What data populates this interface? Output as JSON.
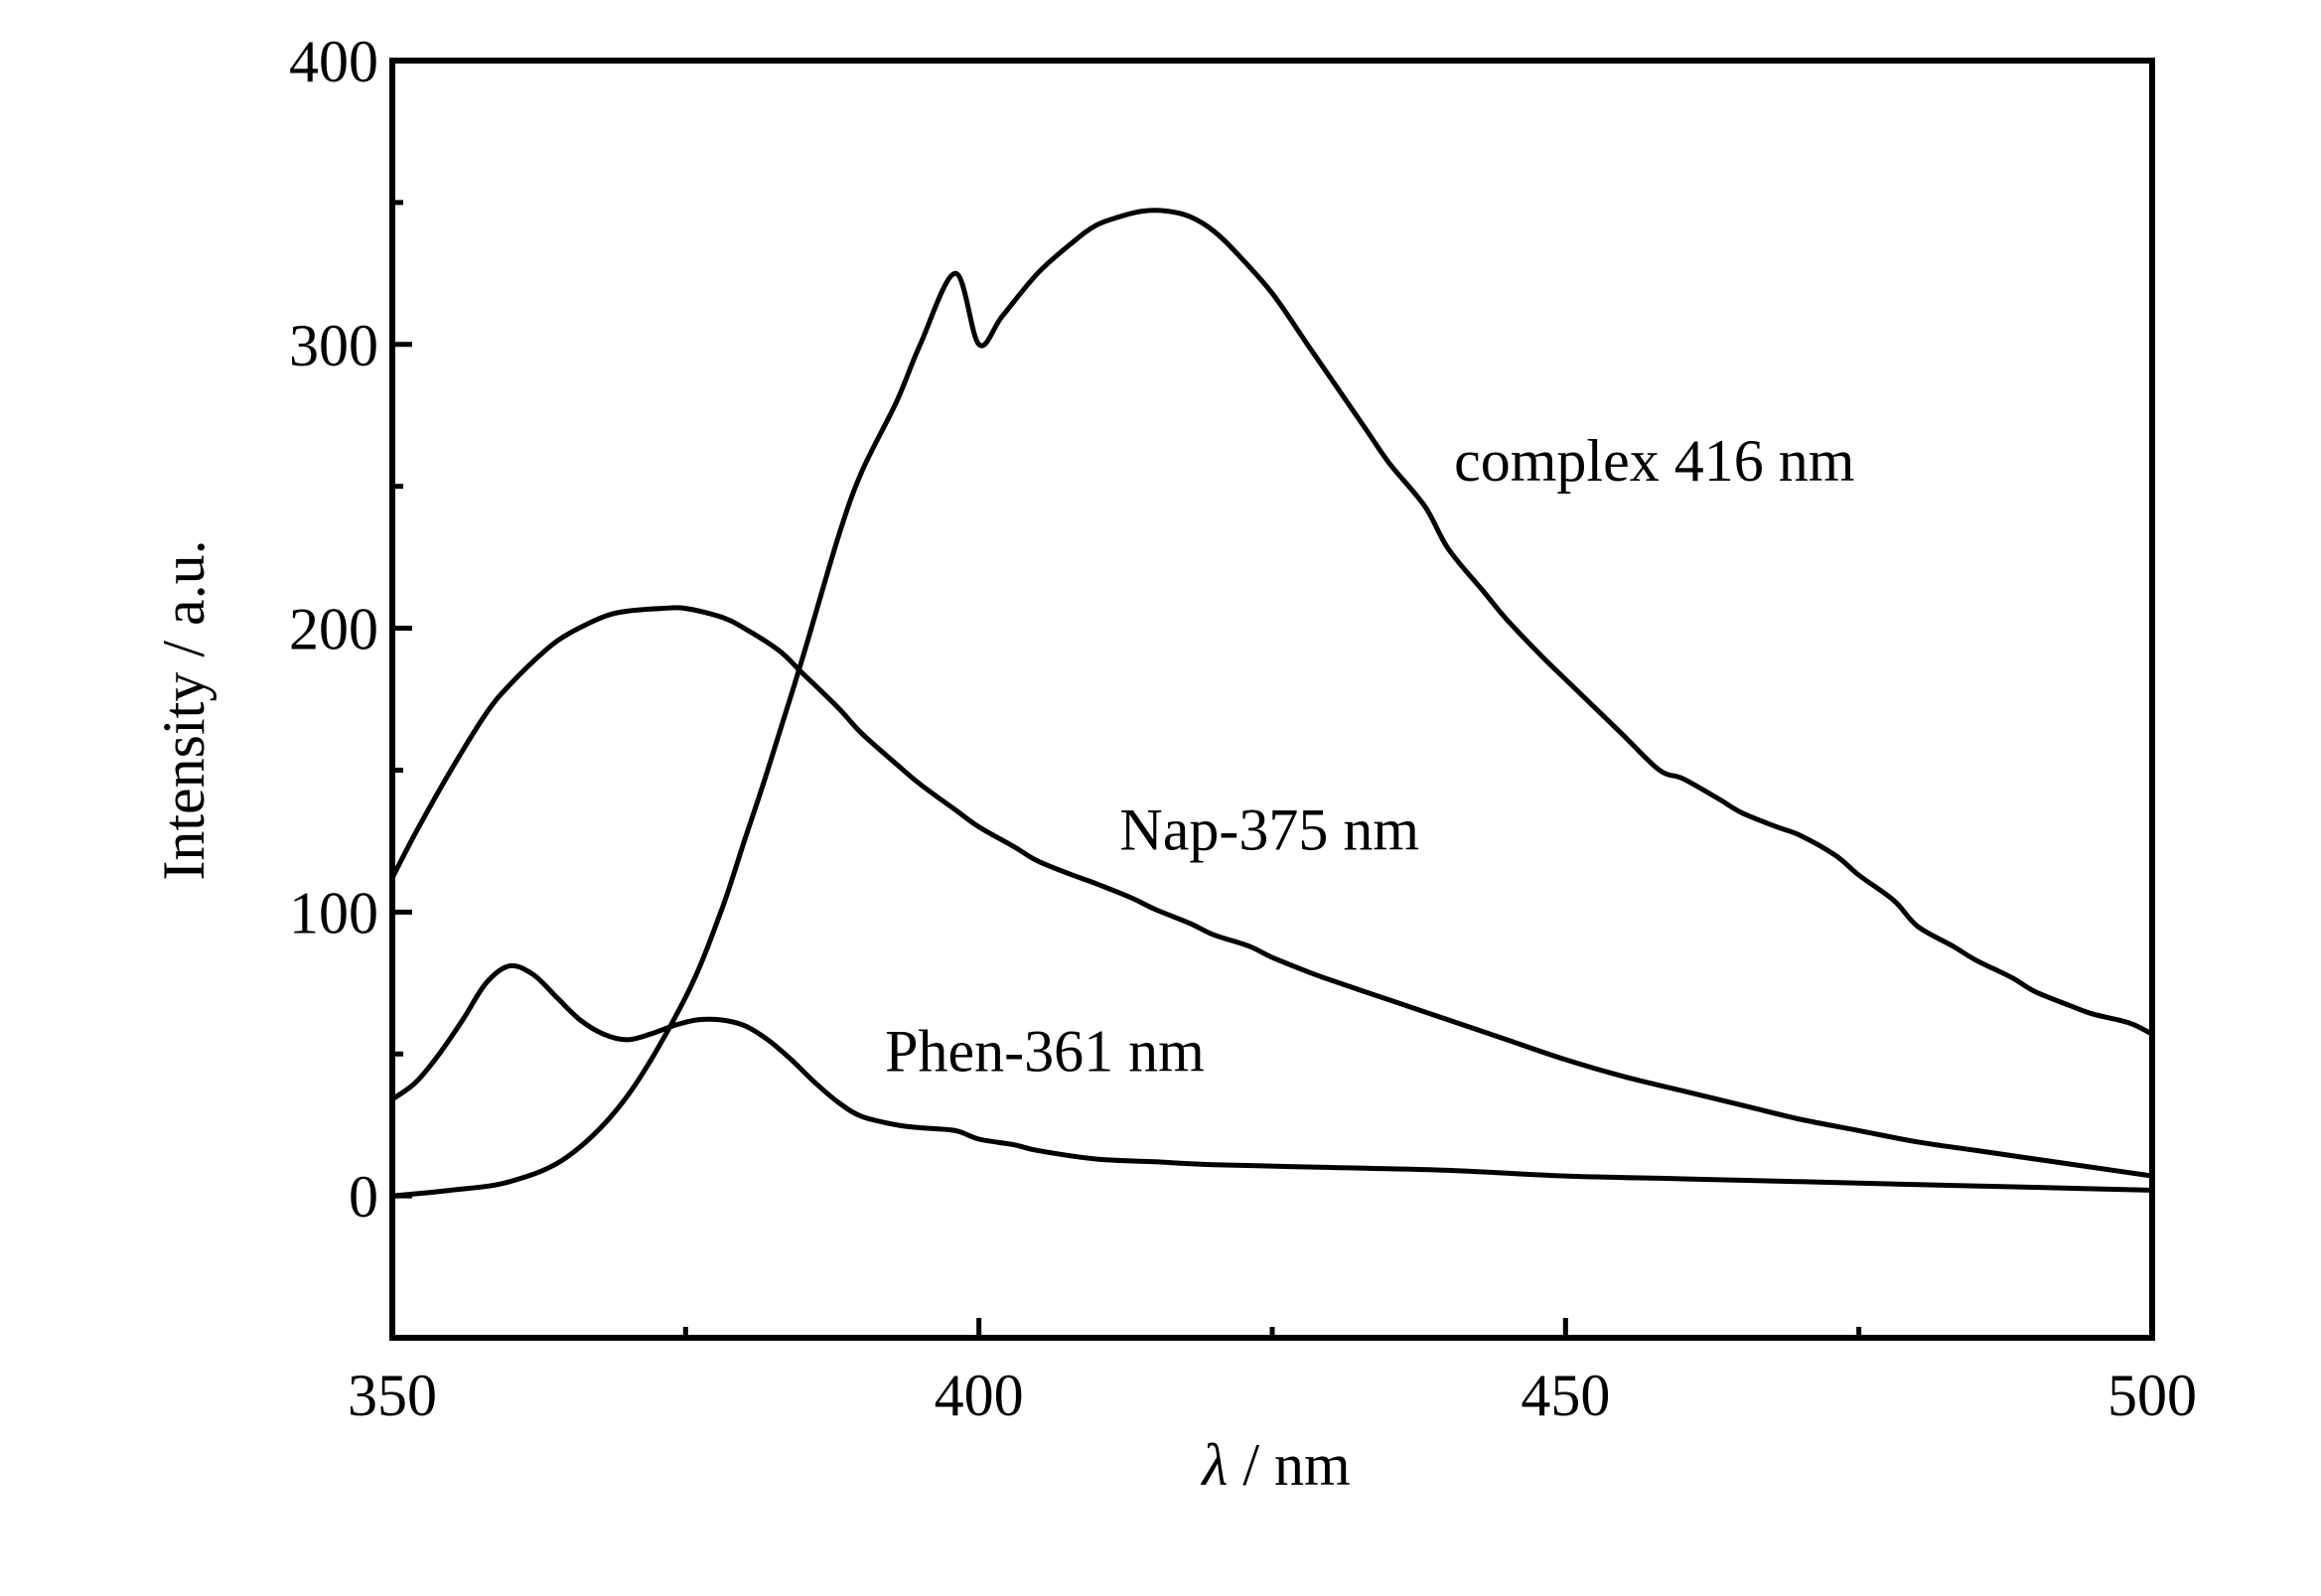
{
  "chart_data": {
    "type": "line",
    "xlabel_symbol": "λ",
    "xlabel_rest": " / nm",
    "ylabel": "Intensity / a.u.",
    "xlim": [
      350,
      500
    ],
    "ylim": [
      -50,
      400
    ],
    "xticks": [
      350,
      400,
      450,
      500
    ],
    "xminor": [
      375,
      425,
      475
    ],
    "yticks": [
      0,
      100,
      200,
      300,
      400
    ],
    "yminor": [
      50,
      150,
      250,
      350
    ],
    "grid": false,
    "series": [
      {
        "key": "complex",
        "x": [
          350,
          355,
          360,
          365,
          370,
          375,
          378,
          380,
          382,
          385,
          388,
          390,
          393,
          395,
          398,
          400,
          402,
          405,
          408,
          410,
          412,
          414,
          416,
          418,
          420,
          422,
          425,
          428,
          430,
          433,
          435,
          438,
          440,
          443,
          445,
          448,
          450,
          453,
          455,
          458,
          460,
          463,
          465,
          468,
          470,
          473,
          475,
          478,
          480,
          483,
          485,
          488,
          490,
          493,
          495,
          498,
          500
        ],
        "y": [
          0,
          2,
          5,
          14,
          35,
          70,
          100,
          125,
          150,
          190,
          232,
          255,
          280,
          300,
          325,
          300,
          310,
          325,
          336,
          342,
          345,
          347,
          347,
          345,
          340,
          332,
          318,
          300,
          288,
          270,
          258,
          243,
          228,
          213,
          203,
          190,
          182,
          170,
          162,
          150,
          147,
          140,
          135,
          130,
          127,
          120,
          113,
          104,
          95,
          88,
          83,
          77,
          72,
          67,
          64,
          61,
          57
        ]
      },
      {
        "key": "nap",
        "x": [
          350,
          352,
          355,
          358,
          360,
          363,
          365,
          368,
          370,
          373,
          375,
          378,
          380,
          383,
          385,
          388,
          390,
          393,
          395,
          398,
          400,
          403,
          405,
          408,
          410,
          413,
          415,
          418,
          420,
          423,
          425,
          428,
          430,
          435,
          440,
          445,
          450,
          455,
          460,
          465,
          470,
          475,
          480,
          485,
          490,
          495,
          500
        ],
        "y": [
          112,
          128,
          150,
          170,
          180,
          192,
          198,
          204,
          206,
          207,
          207,
          204,
          200,
          192,
          184,
          172,
          163,
          152,
          145,
          136,
          130,
          123,
          118,
          113,
          110,
          105,
          101,
          96,
          92,
          88,
          84,
          79,
          76,
          69,
          62,
          55,
          48,
          42,
          37,
          32,
          27,
          23,
          19,
          16,
          13,
          10,
          7
        ]
      },
      {
        "key": "phen",
        "x": [
          350,
          352,
          354,
          356,
          358,
          360,
          362,
          364,
          366,
          368,
          370,
          372,
          374,
          376,
          378,
          380,
          382,
          384,
          386,
          388,
          390,
          393,
          395,
          398,
          400,
          403,
          405,
          410,
          415,
          420,
          430,
          440,
          450,
          460,
          470,
          480,
          490,
          500
        ],
        "y": [
          34,
          40,
          50,
          62,
          75,
          81,
          78,
          70,
          62,
          57,
          55,
          57,
          60,
          62,
          62,
          60,
          55,
          48,
          40,
          33,
          28,
          25,
          24,
          23,
          20,
          18,
          16,
          13,
          12,
          11,
          10,
          9,
          7,
          6,
          5,
          4,
          3,
          2
        ]
      }
    ],
    "annotations": [
      {
        "text": "complex 416 nm",
        "x": 440.5,
        "y": 252
      },
      {
        "text": "Nap-375 nm",
        "x": 412,
        "y": 122
      },
      {
        "text": "Phen-361 nm",
        "x": 392,
        "y": 44
      }
    ]
  }
}
